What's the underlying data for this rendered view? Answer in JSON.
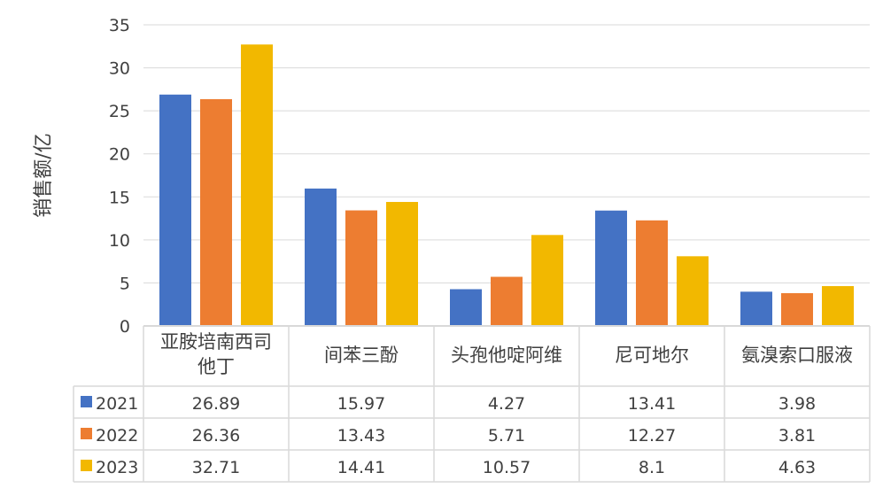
{
  "chart_data": {
    "type": "bar",
    "title": "",
    "xlabel": "",
    "ylabel": "销售额/亿",
    "ylim": [
      0,
      35
    ],
    "yticks": [
      0,
      5,
      10,
      15,
      20,
      25,
      30,
      35
    ],
    "grid": true,
    "legend": "data-table-left",
    "categories": [
      [
        "亚胺培南西司",
        "他丁"
      ],
      [
        "间苯三酚"
      ],
      [
        "头孢他啶阿维"
      ],
      [
        "尼可地尔"
      ],
      [
        "氨溴索口服液"
      ]
    ],
    "series": [
      {
        "name": "2021",
        "color": "#4472C4",
        "values": [
          26.89,
          15.97,
          4.27,
          13.41,
          3.98
        ],
        "labels": [
          "26.89",
          "15.97",
          "4.27",
          "13.41",
          "3.98"
        ]
      },
      {
        "name": "2022",
        "color": "#ED7D31",
        "values": [
          26.36,
          13.43,
          5.71,
          12.27,
          3.81
        ],
        "labels": [
          "26.36",
          "13.43",
          "5.71",
          "12.27",
          "3.81"
        ]
      },
      {
        "name": "2023",
        "color": "#F2B800",
        "values": [
          32.71,
          14.41,
          10.57,
          8.1,
          4.63
        ],
        "labels": [
          "32.71",
          "14.41",
          "10.57",
          "8.1",
          "4.63"
        ]
      }
    ]
  }
}
